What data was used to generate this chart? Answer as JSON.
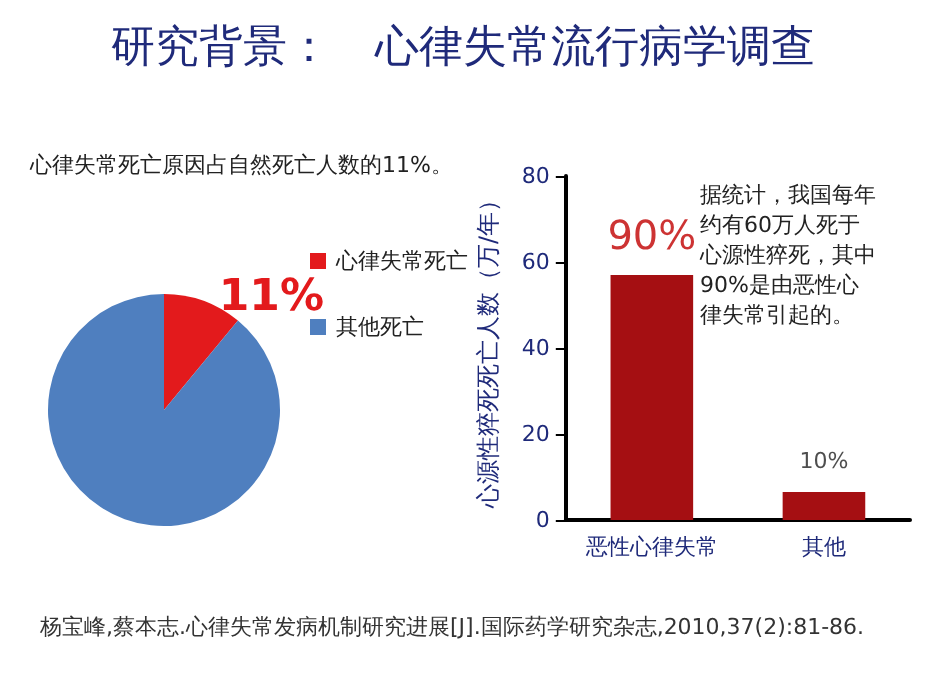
{
  "chart_data": [
    {
      "type": "pie",
      "title": "研究背景：　心律失常流行病学调查",
      "subtitle": "心律失常死亡原因占自然死亡人数的11%。",
      "categories": [
        "心律失常死亡",
        "其他死亡"
      ],
      "values": [
        11,
        89
      ],
      "colors": [
        "#e31a1c",
        "#4f7fbf"
      ],
      "value_labels": [
        "11%",
        null
      ],
      "legend": "right",
      "annotations": [
        "杨宝峰,蔡本志.心律失常发病机制研究进展[J].国际药学研究杂志,2010,37(2):81-86."
      ]
    },
    {
      "type": "bar",
      "categories": [
        "恶性心律失常",
        "其他"
      ],
      "values": [
        57,
        6.5
      ],
      "color": "#a50f12",
      "ylabel": "心源性猝死死亡人数（万/年）",
      "ylim": [
        0,
        80
      ],
      "yticks": [
        0,
        20,
        40,
        60,
        80
      ],
      "grid": false,
      "annotations": [
        "据统计，我国每年约有60万人死于心源性猝死，其中90%是由恶性心律失常引起的。",
        {
          "text": "90%",
          "x": "恶性心律失常",
          "y": 57
        },
        {
          "text": "10%",
          "x": "其他",
          "y": 6.5
        }
      ]
    }
  ]
}
